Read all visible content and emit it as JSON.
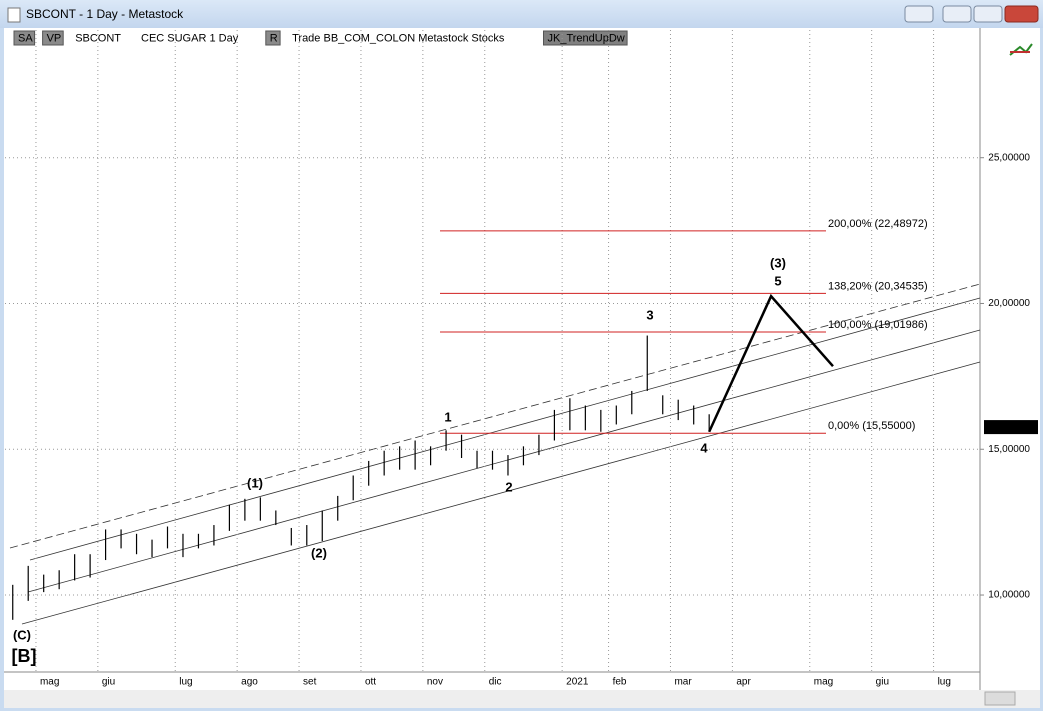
{
  "window": {
    "title": "SBCONT - 1 Day - Metastock"
  },
  "toolbar": {
    "items": [
      "SA",
      "VP",
      "SBCONT",
      "CEC SUGAR  1 Day",
      "R",
      "Trade  BB_COM_COLON  Metastock  Stocks",
      "JK_TrendUpDw"
    ]
  },
  "chart_data": {
    "type": "hilo",
    "categories": [
      null,
      null,
      "mag",
      null,
      null,
      null,
      "giu",
      null,
      null,
      null,
      null,
      "lug",
      null,
      null,
      null,
      "ago",
      null,
      null,
      null,
      "set",
      null,
      null,
      null,
      "ott",
      null,
      null,
      null,
      "nov",
      null,
      null,
      null,
      "dic",
      null,
      null,
      null,
      null,
      "2021",
      null,
      null,
      "feb",
      null,
      null,
      null,
      "mar",
      null,
      null,
      null,
      "apr",
      null,
      null,
      null,
      null,
      "mag",
      null,
      null,
      null,
      "giu",
      null,
      null,
      null,
      "lug",
      null,
      null
    ],
    "high": [
      10.35,
      11.0,
      10.7,
      10.85,
      11.4,
      11.4,
      12.25,
      12.25,
      12.1,
      11.9,
      12.35,
      12.1,
      12.1,
      12.4,
      13.1,
      13.3,
      13.35,
      12.9,
      12.3,
      12.4,
      12.9,
      13.4,
      14.1,
      14.6,
      14.95,
      15.1,
      15.3,
      15.1,
      15.65,
      15.5,
      14.95,
      14.95,
      14.8,
      15.1,
      15.5,
      16.35,
      16.75,
      16.5,
      16.35,
      16.5,
      17.0,
      18.9,
      16.85,
      16.7,
      16.5,
      16.2,
      null,
      null,
      null,
      null,
      null,
      null,
      null,
      null,
      null,
      null,
      null,
      null,
      null,
      null,
      null,
      null,
      null
    ],
    "low": [
      9.15,
      9.8,
      10.1,
      10.2,
      10.5,
      10.6,
      11.2,
      11.6,
      11.4,
      11.3,
      11.6,
      11.3,
      11.6,
      11.7,
      12.2,
      12.55,
      12.55,
      12.4,
      11.7,
      11.7,
      11.85,
      12.55,
      13.25,
      13.75,
      14.1,
      14.3,
      14.3,
      14.45,
      14.95,
      14.7,
      14.35,
      14.3,
      14.1,
      14.45,
      14.8,
      15.3,
      15.65,
      15.65,
      15.6,
      15.85,
      16.2,
      17.0,
      16.2,
      16.0,
      15.85,
      15.6,
      null,
      null,
      null,
      null,
      null,
      null,
      null,
      null,
      null,
      null,
      null,
      null,
      null,
      null,
      null,
      null,
      null
    ],
    "color": "#000000",
    "projection": {
      "values": [
        null,
        null,
        null,
        null,
        null,
        null,
        null,
        null,
        null,
        null,
        null,
        null,
        null,
        null,
        null,
        null,
        null,
        null,
        null,
        null,
        null,
        null,
        null,
        null,
        null,
        null,
        null,
        null,
        null,
        null,
        null,
        null,
        null,
        null,
        null,
        null,
        null,
        null,
        null,
        null,
        null,
        null,
        null,
        null,
        null,
        15.6,
        null,
        null,
        null,
        20.25,
        null,
        null,
        null,
        17.85,
        null,
        null,
        null,
        null,
        null,
        null,
        null,
        null,
        null
      ],
      "color": "#000000"
    },
    "ylim": [
      7.36,
      29.38
    ],
    "yticks": [
      {
        "value": 10,
        "label": "10,00000"
      },
      {
        "value": 15,
        "label": "15,00000"
      },
      {
        "value": 20,
        "label": "20,00000"
      },
      {
        "value": 25,
        "label": "25,00000"
      }
    ],
    "grid": true,
    "last_price": {
      "value": 15.76,
      "label": "15,76000"
    },
    "fib_levels": [
      {
        "value": 22.48972,
        "label": "200,00% (22,48972)"
      },
      {
        "value": 20.34535,
        "label": "138,20% (20,34535)"
      },
      {
        "value": 19.01986,
        "label": "100,00% (19,01986)"
      },
      {
        "value": 15.55,
        "label": "0,00% (15,55000)"
      }
    ],
    "fib_color": "#d02020",
    "wave_labels": [
      "(C)",
      "[B]",
      "(1)",
      "(2)",
      "1",
      "2",
      "3",
      "4",
      "(3)",
      "5"
    ]
  }
}
